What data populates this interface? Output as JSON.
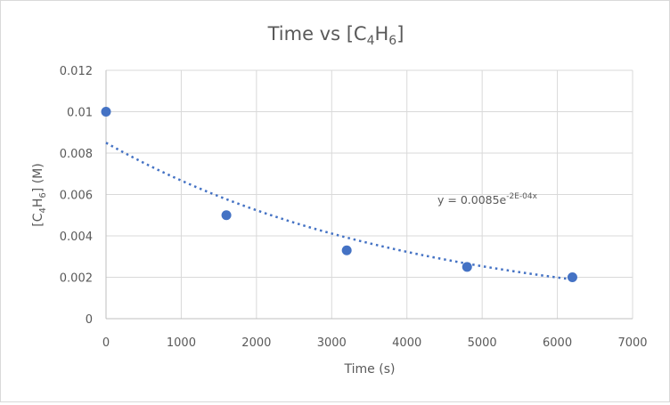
{
  "chart_data": {
    "type": "scatter",
    "title": {
      "main": "Time vs [C",
      "sub1": "4",
      "mid": "H",
      "sub2": "6",
      "end": "]"
    },
    "xlabel": "Time (s)",
    "ylabel": {
      "main": "[C",
      "sub1": "4",
      "mid": "H",
      "sub2": "6",
      "end": "] (M)"
    },
    "xlim": [
      0,
      7000
    ],
    "ylim": [
      0,
      0.012
    ],
    "x_ticks": [
      0,
      1000,
      2000,
      3000,
      4000,
      5000,
      6000,
      7000
    ],
    "x_tick_labels": [
      "0",
      "1000",
      "2000",
      "3000",
      "4000",
      "5000",
      "6000",
      "7000"
    ],
    "y_ticks": [
      0,
      0.002,
      0.004,
      0.006,
      0.008,
      0.01,
      0.012
    ],
    "y_tick_labels": [
      "0",
      "0.002",
      "0.004",
      "0.006",
      "0.008",
      "0.01",
      "0.012"
    ],
    "grid": true,
    "series": [
      {
        "name": "[C4H6]",
        "color": "#4472c4",
        "points": [
          {
            "x": 0,
            "y": 0.01
          },
          {
            "x": 1600,
            "y": 0.005
          },
          {
            "x": 3200,
            "y": 0.0033
          },
          {
            "x": 4800,
            "y": 0.0025
          },
          {
            "x": 6200,
            "y": 0.002
          }
        ]
      }
    ],
    "trendline": {
      "type": "exponential",
      "a": 0.0085,
      "k": -0.000242,
      "x_range": [
        0,
        6200
      ],
      "color": "#4472c4",
      "style": "dotted",
      "label": {
        "prefix": "y = 0.0085e",
        "exponent": "-2E-04x"
      }
    }
  }
}
